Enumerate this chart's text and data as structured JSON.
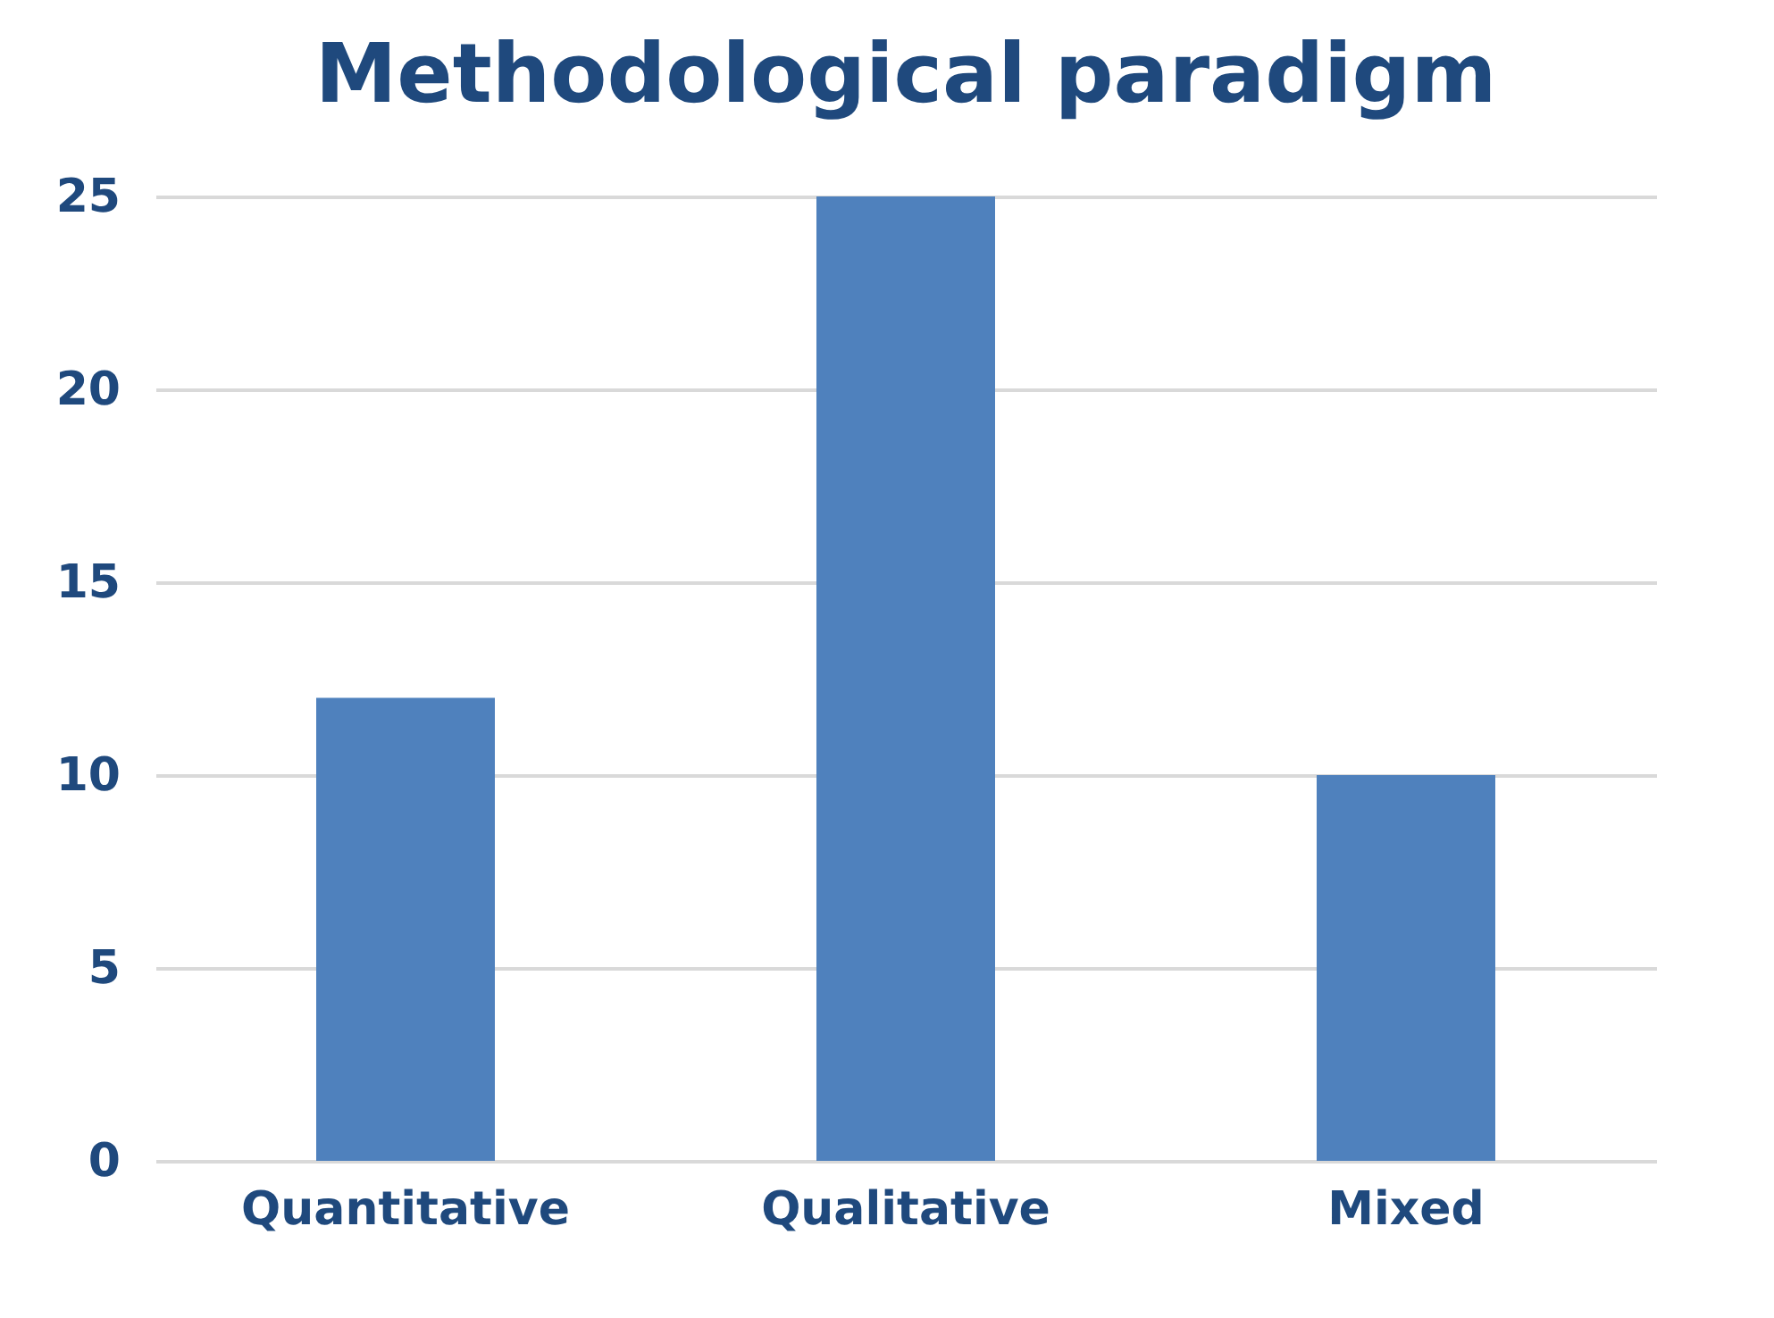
{
  "chart_data": {
    "type": "bar",
    "title": "Methodological paradigm",
    "categories": [
      "Quantitative",
      "Qualitative",
      "Mixed"
    ],
    "values": [
      12,
      25,
      10
    ],
    "color": "#4f81bd",
    "ylim": [
      0,
      25
    ],
    "yticks": [
      0,
      5,
      10,
      15,
      20,
      25
    ],
    "grid": "y"
  }
}
